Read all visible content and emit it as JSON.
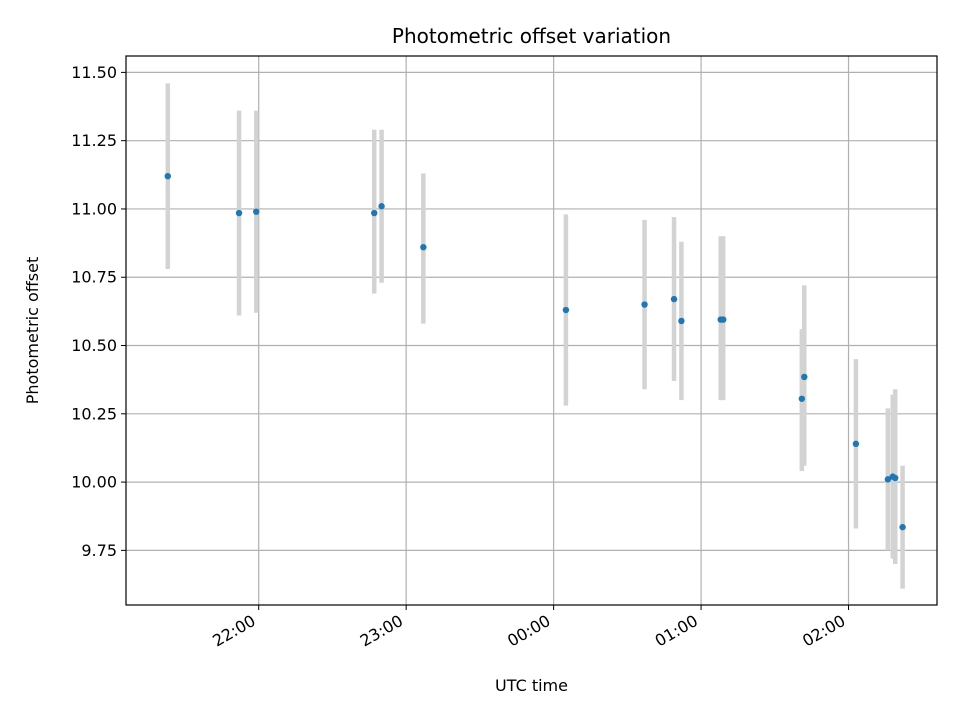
{
  "chart_data": {
    "type": "scatter",
    "title": "Photometric offset variation",
    "xlabel": "UTC time",
    "ylabel": "Photometric offset",
    "x_ticks": [
      "22:00",
      "23:00",
      "00:00",
      "01:00",
      "02:00"
    ],
    "y_ticks": [
      "9.75",
      "10.00",
      "10.25",
      "10.50",
      "10.75",
      "11.00",
      "11.25",
      "11.50"
    ],
    "ylim": [
      9.55,
      11.56
    ],
    "xlim": [
      "21:06",
      "02:36"
    ],
    "grid": true,
    "colors": {
      "point": "#1f77b4",
      "errorbar": "#d3d3d3",
      "grid": "#b0b0b0"
    },
    "points": [
      {
        "t": "21:23",
        "y": 11.12,
        "lo": 10.78,
        "hi": 11.46
      },
      {
        "t": "21:52",
        "y": 10.985,
        "lo": 10.61,
        "hi": 11.36
      },
      {
        "t": "21:59",
        "y": 10.99,
        "lo": 10.62,
        "hi": 11.36
      },
      {
        "t": "22:47",
        "y": 10.985,
        "lo": 10.69,
        "hi": 11.29
      },
      {
        "t": "22:50",
        "y": 11.01,
        "lo": 10.73,
        "hi": 11.29
      },
      {
        "t": "23:07",
        "y": 10.86,
        "lo": 10.58,
        "hi": 11.13
      },
      {
        "t": "00:05",
        "y": 10.63,
        "lo": 10.28,
        "hi": 10.98
      },
      {
        "t": "00:37",
        "y": 10.65,
        "lo": 10.34,
        "hi": 10.96
      },
      {
        "t": "00:49",
        "y": 10.67,
        "lo": 10.37,
        "hi": 10.97
      },
      {
        "t": "00:52",
        "y": 10.59,
        "lo": 10.3,
        "hi": 10.88
      },
      {
        "t": "01:08",
        "y": 10.595,
        "lo": 10.3,
        "hi": 10.9
      },
      {
        "t": "01:09",
        "y": 10.595,
        "lo": 10.3,
        "hi": 10.9
      },
      {
        "t": "01:41",
        "y": 10.305,
        "lo": 10.04,
        "hi": 10.56
      },
      {
        "t": "01:42",
        "y": 10.385,
        "lo": 10.06,
        "hi": 10.72
      },
      {
        "t": "02:03",
        "y": 10.14,
        "lo": 9.83,
        "hi": 10.45
      },
      {
        "t": "02:16",
        "y": 10.01,
        "lo": 9.75,
        "hi": 10.27
      },
      {
        "t": "02:18",
        "y": 10.02,
        "lo": 9.72,
        "hi": 10.32
      },
      {
        "t": "02:19",
        "y": 10.015,
        "lo": 9.7,
        "hi": 10.34
      },
      {
        "t": "02:22",
        "y": 9.835,
        "lo": 9.61,
        "hi": 10.06
      }
    ]
  }
}
